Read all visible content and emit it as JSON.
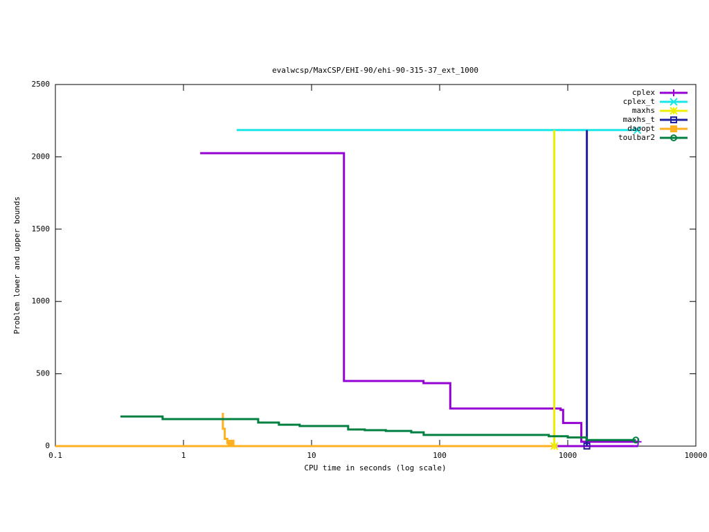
{
  "chart_data": {
    "type": "line",
    "title": "evalwcsp/MaxCSP/EHI-90/ehi-90-315-37_ext_1000",
    "xlabel": "CPU time in seconds (log scale)",
    "ylabel": "Problem lower and upper bounds",
    "xscale": "log",
    "xlim": [
      0.1,
      10000
    ],
    "xticks": [
      0.1,
      1,
      10,
      100,
      1000,
      10000
    ],
    "ylim": [
      0,
      2500
    ],
    "yticks": [
      0,
      500,
      1000,
      1500,
      2000,
      2500
    ],
    "legend": "top-right",
    "series": [
      {
        "name": "cplex",
        "color": "#9400d3",
        "marker": "plus",
        "x": [
          1.35,
          17.9,
          17.9,
          74.8,
          74.8,
          121,
          121,
          879,
          879,
          920,
          920,
          1276,
          1276,
          3540,
          null,
          483,
          3540
        ],
        "values": [
          2025,
          2025,
          450,
          450,
          435,
          435,
          260,
          260,
          250,
          250,
          160,
          160,
          30,
          30,
          null,
          0,
          0
        ]
      },
      {
        "name": "cplex_t",
        "color": "#19e6e6",
        "marker": "cross",
        "x": [
          2.6,
          3500
        ],
        "values": [
          2185,
          2185
        ]
      },
      {
        "name": "maxhs",
        "color": "#eeee00",
        "marker": "star",
        "x": [
          785,
          785
        ],
        "values": [
          2185,
          0
        ]
      },
      {
        "name": "maxhs_t",
        "color": "#2020a0",
        "marker": "square",
        "x": [
          1410,
          1410
        ],
        "values": [
          2185,
          0
        ]
      },
      {
        "name": "daoopt",
        "color": "#ffb020",
        "marker": "filled-square",
        "x": [
          2.03,
          2.03,
          2.1,
          2.1,
          2.2,
          2.2,
          2.35,
          null,
          0.1,
          760
        ],
        "values": [
          230,
          120,
          120,
          50,
          50,
          20,
          20,
          null,
          0,
          0
        ]
      },
      {
        "name": "toulbar2",
        "color": "#008040",
        "marker": "circle",
        "x": [
          0.322,
          0.687,
          0.687,
          3.83,
          3.83,
          5.56,
          5.56,
          8.07,
          8.07,
          19.3,
          19.3,
          26,
          26,
          38,
          38,
          60,
          60,
          75,
          75,
          711,
          711,
          1000,
          1000,
          1400,
          1400,
          3400
        ],
        "values": [
          205,
          205,
          187,
          187,
          163,
          163,
          148,
          148,
          139,
          139,
          115,
          115,
          110,
          110,
          105,
          105,
          95,
          95,
          77,
          77,
          68,
          68,
          60,
          60,
          42,
          42
        ]
      }
    ]
  }
}
